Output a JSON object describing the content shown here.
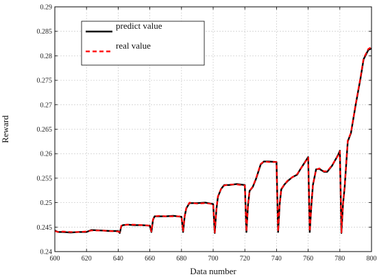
{
  "chart_data": {
    "type": "line",
    "xlabel": "Data number",
    "ylabel": "Reward",
    "xlim": [
      600,
      800
    ],
    "ylim": [
      0.24,
      0.29
    ],
    "xticks": [
      600,
      620,
      640,
      660,
      680,
      700,
      720,
      740,
      760,
      780,
      800
    ],
    "xtick_labels": [
      "600",
      "620",
      "640",
      "660",
      "680",
      "700",
      "720",
      "740",
      "760",
      "780",
      "800"
    ],
    "yticks": [
      0.24,
      0.245,
      0.25,
      0.255,
      0.26,
      0.265,
      0.27,
      0.275,
      0.28,
      0.285,
      0.29
    ],
    "ytick_labels": [
      "0.24",
      "0.245",
      "0.25",
      "0.255",
      "0.26",
      "0.265",
      "0.27",
      "0.275",
      "0.28",
      "0.285",
      "0.29"
    ],
    "grid": true,
    "legend_position": "top-left",
    "series": [
      {
        "name": "predict value",
        "color": "#000000",
        "style": "solid",
        "x": [
          600,
          602,
          605,
          610,
          615,
          620,
          623,
          630,
          635,
          640,
          641,
          642,
          643,
          646,
          650,
          655,
          660,
          661,
          662,
          663,
          666,
          670,
          675,
          680,
          681,
          682,
          683,
          685,
          690,
          695,
          700,
          701,
          702,
          703,
          705,
          707,
          710,
          715,
          720,
          721,
          722,
          723,
          725,
          727,
          730,
          732,
          735,
          740,
          741,
          742,
          743,
          745,
          747,
          750,
          753,
          755,
          760,
          761,
          762,
          763,
          765,
          767,
          770,
          772,
          775,
          779,
          780,
          781,
          782,
          783,
          785,
          787,
          790,
          793,
          795,
          798,
          800
        ],
        "y": [
          0.2443,
          0.244,
          0.244,
          0.2439,
          0.244,
          0.244,
          0.2444,
          0.2443,
          0.2442,
          0.2442,
          0.2438,
          0.2452,
          0.2454,
          0.2455,
          0.2454,
          0.2454,
          0.2453,
          0.244,
          0.2465,
          0.2472,
          0.2472,
          0.2472,
          0.2473,
          0.2471,
          0.244,
          0.2472,
          0.2488,
          0.2499,
          0.2499,
          0.25,
          0.2497,
          0.2438,
          0.2485,
          0.2512,
          0.2528,
          0.2536,
          0.2536,
          0.2538,
          0.2536,
          0.244,
          0.2495,
          0.2524,
          0.2532,
          0.2548,
          0.2578,
          0.2584,
          0.2584,
          0.2583,
          0.244,
          0.2497,
          0.2527,
          0.2537,
          0.2544,
          0.2552,
          0.2557,
          0.2568,
          0.2593,
          0.244,
          0.2494,
          0.2536,
          0.2568,
          0.2569,
          0.2563,
          0.2563,
          0.2575,
          0.2598,
          0.2606,
          0.2438,
          0.2497,
          0.253,
          0.2625,
          0.2642,
          0.27,
          0.2753,
          0.2793,
          0.2812,
          0.2815
        ]
      },
      {
        "name": "real value",
        "color": "#ff0000",
        "style": "dashed",
        "x": [
          600,
          602,
          605,
          610,
          615,
          620,
          623,
          630,
          635,
          640,
          641,
          642,
          643,
          646,
          650,
          655,
          660,
          661,
          662,
          663,
          666,
          670,
          675,
          680,
          681,
          682,
          683,
          685,
          690,
          695,
          700,
          701,
          702,
          703,
          705,
          707,
          710,
          715,
          720,
          721,
          722,
          723,
          725,
          727,
          730,
          732,
          735,
          740,
          741,
          742,
          743,
          745,
          747,
          750,
          753,
          755,
          760,
          761,
          762,
          763,
          765,
          767,
          770,
          772,
          775,
          779,
          780,
          781,
          782,
          783,
          785,
          787,
          790,
          793,
          795,
          798,
          800
        ],
        "y": [
          0.2442,
          0.244,
          0.2441,
          0.244,
          0.244,
          0.2441,
          0.2443,
          0.2443,
          0.2442,
          0.2441,
          0.244,
          0.2453,
          0.2454,
          0.2455,
          0.2455,
          0.2454,
          0.2453,
          0.2441,
          0.2466,
          0.2472,
          0.2473,
          0.2472,
          0.2472,
          0.2472,
          0.2441,
          0.2473,
          0.2489,
          0.25,
          0.2498,
          0.2499,
          0.2497,
          0.2439,
          0.2486,
          0.2513,
          0.2528,
          0.2535,
          0.2537,
          0.2537,
          0.2535,
          0.2441,
          0.2496,
          0.2524,
          0.2533,
          0.2549,
          0.2579,
          0.2584,
          0.2583,
          0.2583,
          0.2441,
          0.2498,
          0.2528,
          0.2537,
          0.2545,
          0.2552,
          0.2558,
          0.2568,
          0.2592,
          0.2441,
          0.2495,
          0.2537,
          0.2567,
          0.257,
          0.2564,
          0.2564,
          0.2576,
          0.2597,
          0.2605,
          0.2439,
          0.2498,
          0.2531,
          0.2627,
          0.2643,
          0.2701,
          0.2755,
          0.2795,
          0.2814,
          0.2818
        ]
      }
    ]
  }
}
